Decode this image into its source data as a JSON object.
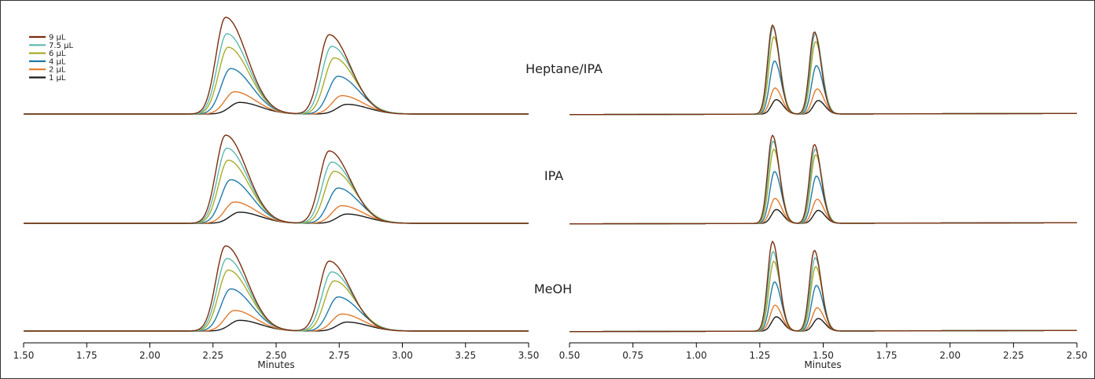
{
  "chart_data": [
    {
      "type": "line",
      "subtype": "chromatogram",
      "xlabel": "Minutes",
      "xlim": [
        1.5,
        3.5
      ],
      "xticks": [
        "1.50",
        "1.75",
        "2.00",
        "2.25",
        "2.50",
        "2.75",
        "3.00",
        "3.25",
        "3.50"
      ],
      "legend": {
        "placement": "top-left",
        "entries": [
          "9 µL",
          "7.5 µL",
          "6 µL",
          "4 µL",
          "2 µL",
          "1 µL"
        ]
      },
      "series_colors": [
        "#7b2e10",
        "#5eb8ae",
        "#a9ab2b",
        "#1f7aa8",
        "#e07a2d",
        "#1a1a1a"
      ],
      "injection_volumes_uL": [
        9,
        7.5,
        6,
        4,
        2,
        1
      ],
      "panels": [
        {
          "label": "Heptane/IPA",
          "peaks": [
            {
              "apex_min": [
                2.3,
                2.305,
                2.31,
                2.32,
                2.335,
                2.355
              ],
              "relative_height": [
                1.0,
                0.83,
                0.69,
                0.47,
                0.23,
                0.12
              ]
            },
            {
              "apex_min": [
                2.71,
                2.72,
                2.73,
                2.745,
                2.76,
                2.78
              ],
              "relative_height": [
                0.82,
                0.7,
                0.58,
                0.39,
                0.19,
                0.1
              ]
            }
          ]
        },
        {
          "label": "IPA",
          "peaks": [
            {
              "apex_min": [
                2.3,
                2.305,
                2.31,
                2.32,
                2.335,
                2.355
              ],
              "relative_height": [
                0.95,
                0.81,
                0.68,
                0.47,
                0.23,
                0.12
              ]
            },
            {
              "apex_min": [
                2.71,
                2.72,
                2.73,
                2.745,
                2.76,
                2.78
              ],
              "relative_height": [
                0.78,
                0.66,
                0.56,
                0.38,
                0.19,
                0.1
              ]
            }
          ]
        },
        {
          "label": "MeOH",
          "peaks": [
            {
              "apex_min": [
                2.3,
                2.305,
                2.31,
                2.32,
                2.335,
                2.355
              ],
              "relative_height": [
                0.95,
                0.81,
                0.68,
                0.47,
                0.23,
                0.12
              ]
            },
            {
              "apex_min": [
                2.71,
                2.72,
                2.73,
                2.745,
                2.76,
                2.78
              ],
              "relative_height": [
                0.78,
                0.66,
                0.56,
                0.38,
                0.19,
                0.1
              ]
            }
          ]
        }
      ]
    },
    {
      "type": "line",
      "subtype": "chromatogram",
      "xlabel": "Minutes",
      "xlim": [
        0.5,
        2.5
      ],
      "xticks": [
        "0.50",
        "0.75",
        "1.00",
        "1.25",
        "1.50",
        "1.75",
        "2.00",
        "2.25",
        "2.50"
      ],
      "series_colors": [
        "#7b2e10",
        "#5eb8ae",
        "#a9ab2b",
        "#1f7aa8",
        "#e07a2d",
        "#1a1a1a"
      ],
      "injection_volumes_uL": [
        9,
        7.5,
        6,
        4,
        2,
        1
      ],
      "panels": [
        {
          "label": "Heptane/IPA",
          "peaks": [
            {
              "apex_min": [
                1.3,
                1.302,
                1.305,
                1.308,
                1.31,
                1.315
              ],
              "relative_height": [
                0.92,
                0.9,
                0.8,
                0.55,
                0.27,
                0.15
              ]
            },
            {
              "apex_min": [
                1.465,
                1.468,
                1.47,
                1.473,
                1.476,
                1.48
              ],
              "relative_height": [
                0.85,
                0.83,
                0.75,
                0.5,
                0.26,
                0.14
              ]
            }
          ]
        },
        {
          "label": "IPA",
          "peaks": [
            {
              "apex_min": [
                1.3,
                1.302,
                1.305,
                1.308,
                1.31,
                1.315
              ],
              "relative_height": [
                0.95,
                0.89,
                0.8,
                0.56,
                0.27,
                0.15
              ]
            },
            {
              "apex_min": [
                1.465,
                1.468,
                1.47,
                1.473,
                1.476,
                1.48
              ],
              "relative_height": [
                0.85,
                0.8,
                0.74,
                0.51,
                0.26,
                0.14
              ]
            }
          ]
        },
        {
          "label": "MeOH",
          "peaks": [
            {
              "apex_min": [
                1.3,
                1.302,
                1.305,
                1.308,
                1.31,
                1.315
              ],
              "relative_height": [
                1.0,
                0.89,
                0.78,
                0.55,
                0.29,
                0.16
              ]
            },
            {
              "apex_min": [
                1.465,
                1.468,
                1.47,
                1.473,
                1.476,
                1.48
              ],
              "relative_height": [
                0.9,
                0.82,
                0.72,
                0.51,
                0.26,
                0.14
              ]
            }
          ]
        }
      ]
    }
  ]
}
